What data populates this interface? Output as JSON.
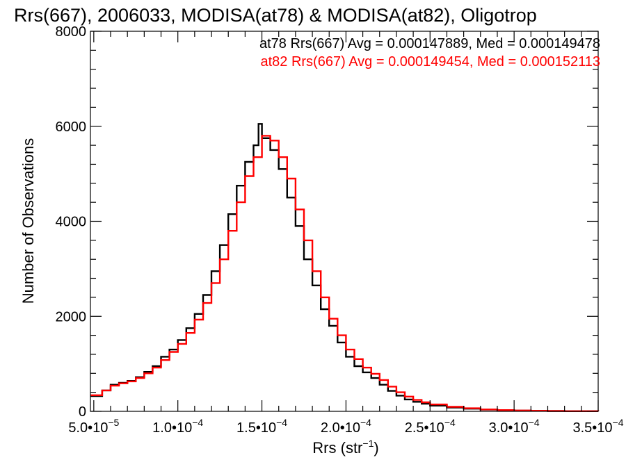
{
  "chart_data": {
    "type": "histogram",
    "title": "Rrs(667), 2006033, MODISA(at78) & MODISA(at82), Oligotrop",
    "xlabel": "Rrs (str",
    "xlabel_sup": "−1",
    "xlabel_close": ")",
    "ylabel": "Number of Observations",
    "xlim": [
      4.8e-05,
      0.00035
    ],
    "ylim": [
      0,
      8000
    ],
    "x_ticks": [
      {
        "value": 5e-05,
        "mantissa": "5.0•10",
        "exp": "−5"
      },
      {
        "value": 0.0001,
        "mantissa": "1.0•10",
        "exp": "−4"
      },
      {
        "value": 0.00015,
        "mantissa": "1.5•10",
        "exp": "−4"
      },
      {
        "value": 0.0002,
        "mantissa": "2.0•10",
        "exp": "−4"
      },
      {
        "value": 0.00025,
        "mantissa": "2.5•10",
        "exp": "−4"
      },
      {
        "value": 0.0003,
        "mantissa": "3.0•10",
        "exp": "−4"
      },
      {
        "value": 0.00035,
        "mantissa": "3.5•10",
        "exp": "−4"
      }
    ],
    "y_ticks": [
      {
        "value": 0,
        "label": "0"
      },
      {
        "value": 2000,
        "label": "2000"
      },
      {
        "value": 4000,
        "label": "4000"
      },
      {
        "value": 6000,
        "label": "6000"
      },
      {
        "value": 8000,
        "label": "8000"
      }
    ],
    "grid": false,
    "series": [
      {
        "name": "at78",
        "color": "#000000",
        "stat_label": "at78 Rrs(667) Avg = 0.000147889, Med = 0.000149478",
        "points": [
          [
            4.8e-05,
            320
          ],
          [
            5.5e-05,
            440
          ],
          [
            6e-05,
            560
          ],
          [
            6.5e-05,
            600
          ],
          [
            7e-05,
            640
          ],
          [
            7.5e-05,
            720
          ],
          [
            8e-05,
            830
          ],
          [
            8.5e-05,
            950
          ],
          [
            9e-05,
            1150
          ],
          [
            9.5e-05,
            1300
          ],
          [
            0.0001,
            1500
          ],
          [
            0.000105,
            1750
          ],
          [
            0.00011,
            2050
          ],
          [
            0.000115,
            2450
          ],
          [
            0.00012,
            2950
          ],
          [
            0.000125,
            3500
          ],
          [
            0.00013,
            4150
          ],
          [
            0.000135,
            4750
          ],
          [
            0.00014,
            5250
          ],
          [
            0.000145,
            5600
          ],
          [
            0.000148,
            6050
          ],
          [
            0.00015,
            5750
          ],
          [
            0.000155,
            5500
          ],
          [
            0.00016,
            5100
          ],
          [
            0.000165,
            4500
          ],
          [
            0.00017,
            3900
          ],
          [
            0.000175,
            3200
          ],
          [
            0.00018,
            2650
          ],
          [
            0.000185,
            2150
          ],
          [
            0.00019,
            1800
          ],
          [
            0.000195,
            1450
          ],
          [
            0.0002,
            1150
          ],
          [
            0.000205,
            950
          ],
          [
            0.00021,
            820
          ],
          [
            0.000215,
            700
          ],
          [
            0.00022,
            560
          ],
          [
            0.000225,
            430
          ],
          [
            0.00023,
            330
          ],
          [
            0.000235,
            250
          ],
          [
            0.00024,
            200
          ],
          [
            0.000245,
            160
          ],
          [
            0.00025,
            120
          ],
          [
            0.00026,
            80
          ],
          [
            0.00027,
            55
          ],
          [
            0.00028,
            35
          ],
          [
            0.00029,
            22
          ],
          [
            0.0003,
            15
          ],
          [
            0.00031,
            10
          ],
          [
            0.00032,
            6
          ],
          [
            0.00033,
            4
          ],
          [
            0.00035,
            2
          ]
        ]
      },
      {
        "name": "at82",
        "color": "#ff0000",
        "stat_label": "at82 Rrs(667) Avg = 0.000149454, Med = 0.000152113",
        "points": [
          [
            4.8e-05,
            340
          ],
          [
            5.5e-05,
            440
          ],
          [
            6e-05,
            540
          ],
          [
            6.5e-05,
            590
          ],
          [
            7e-05,
            630
          ],
          [
            7.5e-05,
            700
          ],
          [
            8e-05,
            800
          ],
          [
            8.5e-05,
            920
          ],
          [
            9e-05,
            1080
          ],
          [
            9.5e-05,
            1250
          ],
          [
            0.0001,
            1420
          ],
          [
            0.000105,
            1650
          ],
          [
            0.00011,
            1930
          ],
          [
            0.000115,
            2280
          ],
          [
            0.00012,
            2700
          ],
          [
            0.000125,
            3200
          ],
          [
            0.00013,
            3800
          ],
          [
            0.000135,
            4400
          ],
          [
            0.00014,
            4950
          ],
          [
            0.000145,
            5350
          ],
          [
            0.00015,
            5800
          ],
          [
            0.000155,
            5700
          ],
          [
            0.00016,
            5350
          ],
          [
            0.000165,
            4900
          ],
          [
            0.00017,
            4250
          ],
          [
            0.000175,
            3600
          ],
          [
            0.00018,
            2950
          ],
          [
            0.000185,
            2400
          ],
          [
            0.00019,
            1950
          ],
          [
            0.000195,
            1600
          ],
          [
            0.0002,
            1300
          ],
          [
            0.000205,
            1100
          ],
          [
            0.00021,
            920
          ],
          [
            0.000215,
            790
          ],
          [
            0.00022,
            660
          ],
          [
            0.000225,
            520
          ],
          [
            0.00023,
            400
          ],
          [
            0.000235,
            310
          ],
          [
            0.00024,
            240
          ],
          [
            0.000245,
            190
          ],
          [
            0.00025,
            145
          ],
          [
            0.00026,
            95
          ],
          [
            0.00027,
            65
          ],
          [
            0.00028,
            40
          ],
          [
            0.00029,
            26
          ],
          [
            0.0003,
            17
          ],
          [
            0.00031,
            11
          ],
          [
            0.00032,
            7
          ],
          [
            0.00033,
            4
          ],
          [
            0.00035,
            2
          ]
        ]
      }
    ]
  }
}
